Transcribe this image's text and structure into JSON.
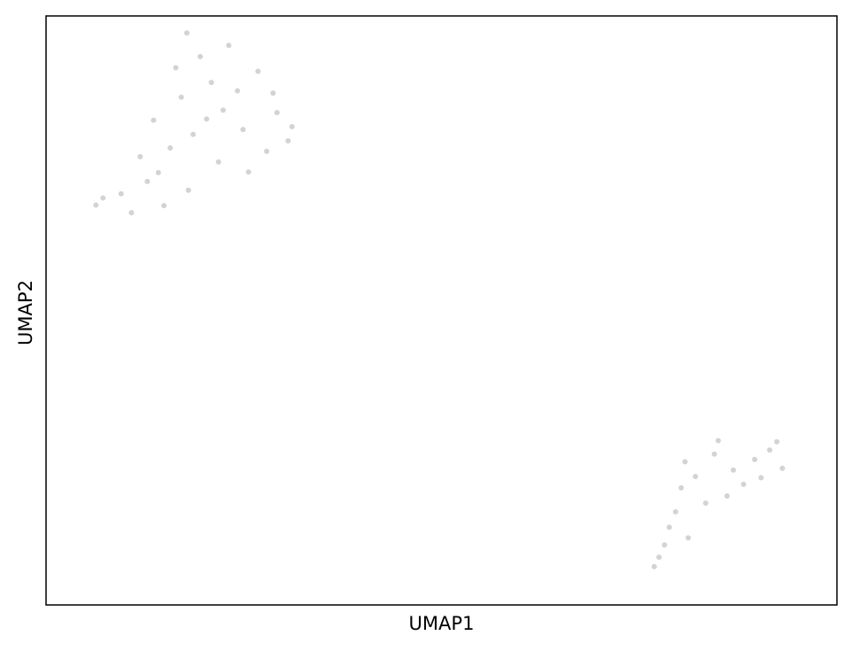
{
  "chart_data": {
    "type": "scatter",
    "title": "",
    "xlabel": "UMAP1",
    "ylabel": "UMAP2",
    "xlim": [
      0,
      100
    ],
    "ylim": [
      0,
      100
    ],
    "grid": false,
    "legend": "none",
    "ticks_shown": false,
    "point_color": "#d3d3d3",
    "frame_color": "#000000",
    "series": [
      {
        "values": [
          {
            "x": 18.6,
            "y": 79.9
          },
          {
            "x": 20.3,
            "y": 82.5
          },
          {
            "x": 15.7,
            "y": 77.6
          },
          {
            "x": 22.4,
            "y": 84.0
          },
          {
            "x": 17.1,
            "y": 86.2
          },
          {
            "x": 24.9,
            "y": 80.7
          },
          {
            "x": 12.8,
            "y": 71.9
          },
          {
            "x": 9.5,
            "y": 69.8
          },
          {
            "x": 14.2,
            "y": 73.4
          },
          {
            "x": 26.8,
            "y": 90.6
          },
          {
            "x": 19.5,
            "y": 93.1
          },
          {
            "x": 23.1,
            "y": 95.0
          },
          {
            "x": 16.4,
            "y": 91.2
          },
          {
            "x": 28.7,
            "y": 86.9
          },
          {
            "x": 30.6,
            "y": 78.8
          },
          {
            "x": 29.2,
            "y": 83.6
          },
          {
            "x": 11.9,
            "y": 76.1
          },
          {
            "x": 13.6,
            "y": 82.3
          },
          {
            "x": 21.8,
            "y": 75.2
          },
          {
            "x": 25.6,
            "y": 73.5
          },
          {
            "x": 18.0,
            "y": 70.4
          },
          {
            "x": 7.2,
            "y": 69.1
          },
          {
            "x": 6.3,
            "y": 67.9
          },
          {
            "x": 10.8,
            "y": 66.6
          },
          {
            "x": 14.9,
            "y": 67.8
          },
          {
            "x": 27.9,
            "y": 77.0
          },
          {
            "x": 31.1,
            "y": 81.2
          },
          {
            "x": 20.9,
            "y": 88.7
          },
          {
            "x": 24.2,
            "y": 87.3
          },
          {
            "x": 17.8,
            "y": 97.1
          },
          {
            "x": 89.6,
            "y": 24.7
          },
          {
            "x": 91.5,
            "y": 26.3
          },
          {
            "x": 86.9,
            "y": 22.9
          },
          {
            "x": 84.5,
            "y": 25.6
          },
          {
            "x": 82.1,
            "y": 21.8
          },
          {
            "x": 88.2,
            "y": 20.5
          },
          {
            "x": 93.1,
            "y": 23.2
          },
          {
            "x": 80.3,
            "y": 19.9
          },
          {
            "x": 79.6,
            "y": 15.8
          },
          {
            "x": 78.8,
            "y": 13.2
          },
          {
            "x": 77.5,
            "y": 8.1
          },
          {
            "x": 76.9,
            "y": 6.5
          },
          {
            "x": 81.2,
            "y": 11.4
          },
          {
            "x": 83.4,
            "y": 17.3
          },
          {
            "x": 86.1,
            "y": 18.5
          },
          {
            "x": 90.4,
            "y": 21.6
          },
          {
            "x": 92.4,
            "y": 27.7
          },
          {
            "x": 85.0,
            "y": 27.9
          },
          {
            "x": 80.8,
            "y": 24.3
          },
          {
            "x": 78.2,
            "y": 10.2
          }
        ]
      }
    ]
  }
}
